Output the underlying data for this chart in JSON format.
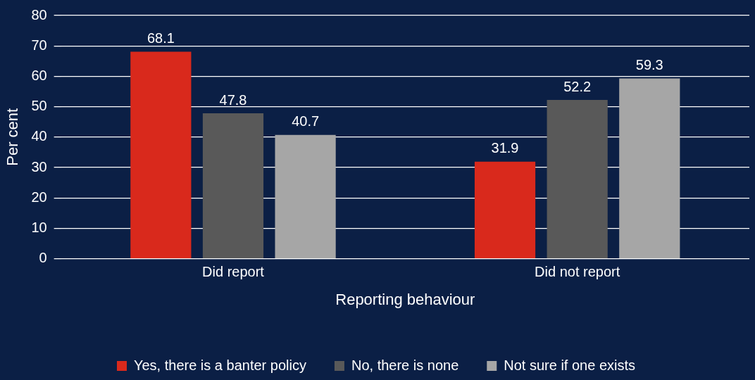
{
  "chart_data": {
    "type": "bar",
    "xlabel": "Reporting behaviour",
    "ylabel": "Per cent",
    "categories": [
      "Did report",
      "Did not report"
    ],
    "series": [
      {
        "name": "Yes, there is a banter policy",
        "color": "#d9291c",
        "values": [
          68.1,
          31.9
        ]
      },
      {
        "name": "No, there is none",
        "color": "#595959",
        "values": [
          47.8,
          52.2
        ]
      },
      {
        "name": "Not sure if one exists",
        "color": "#a6a6a6",
        "values": [
          40.7,
          59.3
        ]
      }
    ],
    "ylim": [
      0,
      80
    ],
    "yticks": [
      0,
      10,
      20,
      30,
      40,
      50,
      60,
      70,
      80
    ],
    "grid": "y",
    "legend": "bottom",
    "data_labels": true
  }
}
